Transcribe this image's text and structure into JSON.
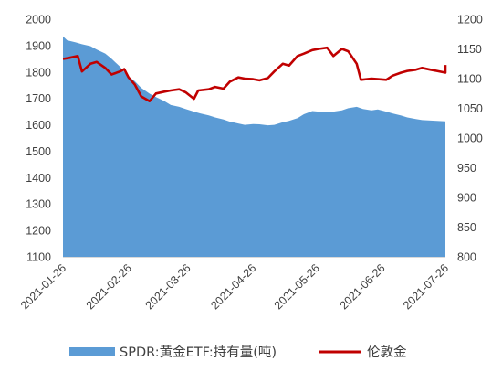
{
  "chart_data": {
    "type": "area",
    "categories": [
      "2021-01-26",
      "2021-02-26",
      "2021-03-26",
      "2021-04-26",
      "2021-05-26",
      "2021-06-26",
      "2021-07-26"
    ],
    "y_left": {
      "min": 1100,
      "max": 2000,
      "step": 100,
      "ticks": [
        "1100",
        "1200",
        "1300",
        "1400",
        "1500",
        "1600",
        "1700",
        "1800",
        "1900",
        "2000"
      ]
    },
    "y_right": {
      "min": 800,
      "max": 1200,
      "step": 50,
      "ticks": [
        "800",
        "850",
        "900",
        "950",
        "1000",
        "1050",
        "1100",
        "1150",
        "1200"
      ]
    },
    "grid": false,
    "legend_position": "bottom",
    "series": [
      {
        "name": "SPDR:黄金ETF:持有量(吨)",
        "type": "area",
        "axis": "left",
        "color": "#5b9bd5",
        "points": [
          [
            "2021-01-26",
            1935
          ],
          [
            "2021-01-28",
            1920
          ],
          [
            "2021-02-01",
            1912
          ],
          [
            "2021-02-04",
            1905
          ],
          [
            "2021-02-08",
            1898
          ],
          [
            "2021-02-11",
            1885
          ],
          [
            "2021-02-15",
            1870
          ],
          [
            "2021-02-18",
            1850
          ],
          [
            "2021-02-22",
            1820
          ],
          [
            "2021-02-25",
            1790
          ],
          [
            "2021-03-01",
            1765
          ],
          [
            "2021-03-04",
            1740
          ],
          [
            "2021-03-08",
            1718
          ],
          [
            "2021-03-11",
            1705
          ],
          [
            "2021-03-15",
            1690
          ],
          [
            "2021-03-18",
            1675
          ],
          [
            "2021-03-22",
            1668
          ],
          [
            "2021-03-25",
            1660
          ],
          [
            "2021-03-29",
            1650
          ],
          [
            "2021-04-01",
            1643
          ],
          [
            "2021-04-05",
            1636
          ],
          [
            "2021-04-08",
            1628
          ],
          [
            "2021-04-12",
            1620
          ],
          [
            "2021-04-15",
            1612
          ],
          [
            "2021-04-19",
            1605
          ],
          [
            "2021-04-22",
            1600
          ],
          [
            "2021-04-26",
            1603
          ],
          [
            "2021-04-29",
            1602
          ],
          [
            "2021-05-03",
            1598
          ],
          [
            "2021-05-06",
            1600
          ],
          [
            "2021-05-10",
            1610
          ],
          [
            "2021-05-13",
            1615
          ],
          [
            "2021-05-17",
            1625
          ],
          [
            "2021-05-20",
            1640
          ],
          [
            "2021-05-24",
            1652
          ],
          [
            "2021-05-27",
            1650
          ],
          [
            "2021-05-31",
            1648
          ],
          [
            "2021-06-03",
            1650
          ],
          [
            "2021-06-07",
            1655
          ],
          [
            "2021-06-10",
            1663
          ],
          [
            "2021-06-14",
            1668
          ],
          [
            "2021-06-17",
            1660
          ],
          [
            "2021-06-21",
            1655
          ],
          [
            "2021-06-24",
            1658
          ],
          [
            "2021-06-28",
            1650
          ],
          [
            "2021-07-01",
            1643
          ],
          [
            "2021-07-05",
            1635
          ],
          [
            "2021-07-08",
            1628
          ],
          [
            "2021-07-12",
            1622
          ],
          [
            "2021-07-15",
            1618
          ],
          [
            "2021-07-19",
            1616
          ],
          [
            "2021-07-22",
            1615
          ],
          [
            "2021-07-26",
            1613
          ],
          [
            "2021-07-30",
            1622
          ]
        ]
      },
      {
        "name": "伦敦金",
        "type": "line",
        "axis": "right",
        "color": "#c00000",
        "points": [
          [
            "2021-01-26",
            1133
          ],
          [
            "2021-01-29",
            1135
          ],
          [
            "2021-02-02",
            1138
          ],
          [
            "2021-02-04",
            1112
          ],
          [
            "2021-02-08",
            1125
          ],
          [
            "2021-02-11",
            1128
          ],
          [
            "2021-02-15",
            1118
          ],
          [
            "2021-02-18",
            1107
          ],
          [
            "2021-02-22",
            1112
          ],
          [
            "2021-02-24",
            1116
          ],
          [
            "2021-02-26",
            1102
          ],
          [
            "2021-03-01",
            1090
          ],
          [
            "2021-03-04",
            1070
          ],
          [
            "2021-03-08",
            1062
          ],
          [
            "2021-03-11",
            1075
          ],
          [
            "2021-03-15",
            1078
          ],
          [
            "2021-03-18",
            1080
          ],
          [
            "2021-03-22",
            1082
          ],
          [
            "2021-03-25",
            1077
          ],
          [
            "2021-03-29",
            1066
          ],
          [
            "2021-03-31",
            1080
          ],
          [
            "2021-04-05",
            1082
          ],
          [
            "2021-04-08",
            1086
          ],
          [
            "2021-04-12",
            1083
          ],
          [
            "2021-04-15",
            1095
          ],
          [
            "2021-04-19",
            1102
          ],
          [
            "2021-04-22",
            1100
          ],
          [
            "2021-04-26",
            1099
          ],
          [
            "2021-04-29",
            1097
          ],
          [
            "2021-05-03",
            1101
          ],
          [
            "2021-05-06",
            1112
          ],
          [
            "2021-05-10",
            1125
          ],
          [
            "2021-05-13",
            1122
          ],
          [
            "2021-05-17",
            1138
          ],
          [
            "2021-05-20",
            1142
          ],
          [
            "2021-05-24",
            1148
          ],
          [
            "2021-05-27",
            1150
          ],
          [
            "2021-05-31",
            1152
          ],
          [
            "2021-06-03",
            1138
          ],
          [
            "2021-06-07",
            1150
          ],
          [
            "2021-06-10",
            1146
          ],
          [
            "2021-06-14",
            1125
          ],
          [
            "2021-06-16",
            1098
          ],
          [
            "2021-06-21",
            1100
          ],
          [
            "2021-06-24",
            1099
          ],
          [
            "2021-06-28",
            1098
          ],
          [
            "2021-07-01",
            1105
          ],
          [
            "2021-07-05",
            1110
          ],
          [
            "2021-07-08",
            1113
          ],
          [
            "2021-07-12",
            1115
          ],
          [
            "2021-07-15",
            1118
          ],
          [
            "2021-07-19",
            1115
          ],
          [
            "2021-07-22",
            1113
          ],
          [
            "2021-07-26",
            1110
          ],
          [
            "2021-07-28",
            1113
          ],
          [
            "2021-07-30",
            1123
          ]
        ]
      }
    ]
  }
}
